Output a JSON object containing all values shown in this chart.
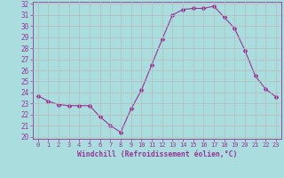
{
  "x": [
    0,
    1,
    2,
    3,
    4,
    5,
    6,
    7,
    8,
    9,
    10,
    11,
    12,
    13,
    14,
    15,
    16,
    17,
    18,
    19,
    20,
    21,
    22,
    23
  ],
  "y": [
    23.7,
    23.2,
    22.9,
    22.8,
    22.8,
    22.8,
    21.8,
    21.0,
    20.4,
    22.5,
    24.2,
    26.5,
    28.8,
    31.0,
    31.5,
    31.6,
    31.6,
    31.8,
    30.8,
    29.8,
    27.8,
    25.5,
    24.3,
    23.6
  ],
  "line_color": "#993399",
  "marker": "D",
  "marker_size": 2,
  "bg_color": "#aadddd",
  "grid_color": "#bbbbbb",
  "xlabel": "Windchill (Refroidissement éolien,°C)",
  "xlabel_color": "#993399",
  "tick_color": "#993399",
  "ylim": [
    20,
    32
  ],
  "xlim": [
    -0.5,
    23.5
  ],
  "yticks": [
    20,
    21,
    22,
    23,
    24,
    25,
    26,
    27,
    28,
    29,
    30,
    31,
    32
  ],
  "xticks": [
    0,
    1,
    2,
    3,
    4,
    5,
    6,
    7,
    8,
    9,
    10,
    11,
    12,
    13,
    14,
    15,
    16,
    17,
    18,
    19,
    20,
    21,
    22,
    23
  ]
}
